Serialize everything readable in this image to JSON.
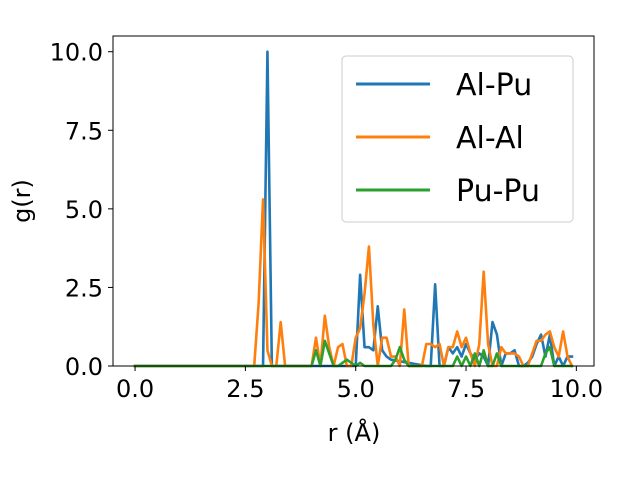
{
  "chart_data": {
    "type": "line",
    "title": "",
    "xlabel": "r (Å)",
    "ylabel": "g(r)",
    "xlim": [
      -0.5,
      10.4
    ],
    "ylim": [
      0.0,
      10.5
    ],
    "xticks": [
      0.0,
      2.5,
      5.0,
      7.5,
      10.0
    ],
    "xtick_labels": [
      "0.0",
      "2.5",
      "5.0",
      "7.5",
      "10.0"
    ],
    "yticks": [
      0.0,
      2.5,
      5.0,
      7.5,
      10.0
    ],
    "ytick_labels": [
      "0.0",
      "2.5",
      "5.0",
      "7.5",
      "10.0"
    ],
    "grid": false,
    "legend": "top-right",
    "series": [
      {
        "name": "Al-Pu",
        "color": "#1f77b4",
        "x": [
          0.0,
          2.7,
          2.9,
          3.0,
          3.1,
          3.3,
          4.9,
          5.0,
          5.1,
          5.2,
          5.3,
          5.4,
          5.5,
          5.6,
          5.7,
          5.8,
          6.6,
          6.7,
          6.8,
          6.9,
          7.0,
          7.1,
          7.2,
          7.3,
          7.4,
          7.5,
          7.6,
          7.7,
          7.8,
          7.9,
          8.0,
          8.1,
          8.2,
          8.3,
          8.4,
          8.5,
          8.6,
          8.7,
          8.8,
          8.9,
          9.0,
          9.1,
          9.2,
          9.3,
          9.4,
          9.5,
          9.6,
          9.7,
          9.8,
          9.9
        ],
        "y": [
          0.0,
          0.0,
          0.0,
          10.0,
          0.0,
          0.0,
          0.0,
          0.0,
          2.9,
          0.6,
          0.6,
          0.5,
          1.9,
          0.5,
          0.3,
          0.2,
          0.0,
          0.0,
          2.6,
          0.0,
          0.0,
          0.6,
          0.4,
          0.6,
          0.3,
          0.7,
          0.4,
          0.2,
          0.4,
          0.3,
          0.0,
          1.4,
          1.0,
          0.0,
          0.4,
          0.4,
          0.5,
          0.0,
          0.0,
          0.1,
          0.3,
          0.7,
          1.0,
          0.3,
          1.0,
          0.0,
          0.3,
          0.0,
          0.3,
          0.3
        ]
      },
      {
        "name": "Al-Al",
        "color": "#ff7f0e",
        "x": [
          0.0,
          2.7,
          2.8,
          2.9,
          3.0,
          3.1,
          3.2,
          3.3,
          3.4,
          3.9,
          4.0,
          4.1,
          4.2,
          4.3,
          4.4,
          4.5,
          4.6,
          4.7,
          4.8,
          4.9,
          5.0,
          5.1,
          5.2,
          5.3,
          5.4,
          5.5,
          5.6,
          5.7,
          5.8,
          5.9,
          6.0,
          6.1,
          6.2,
          6.3,
          6.4,
          6.5,
          6.6,
          6.7,
          6.8,
          6.9,
          7.0,
          7.1,
          7.2,
          7.3,
          7.4,
          7.5,
          7.6,
          7.7,
          7.8,
          7.9,
          8.0,
          8.1,
          8.2,
          8.3,
          8.4,
          8.5,
          8.6,
          8.7,
          8.8,
          8.9,
          9.0,
          9.1,
          9.2,
          9.3,
          9.4,
          9.5,
          9.6,
          9.7,
          9.8,
          9.9
        ],
        "y": [
          0.0,
          0.0,
          2.0,
          5.3,
          0.5,
          0.0,
          0.0,
          1.4,
          0.0,
          0.0,
          0.0,
          0.9,
          0.0,
          1.6,
          0.6,
          0.0,
          0.6,
          0.7,
          0.0,
          0.0,
          0.9,
          1.2,
          2.3,
          3.8,
          1.3,
          0.0,
          0.9,
          0.9,
          0.3,
          0.3,
          0.0,
          1.8,
          0.0,
          0.0,
          0.0,
          0.0,
          0.7,
          0.7,
          0.6,
          0.7,
          0.0,
          0.6,
          0.6,
          1.1,
          0.6,
          0.9,
          0.4,
          0.0,
          0.7,
          3.0,
          0.7,
          0.0,
          0.0,
          0.6,
          0.4,
          0.4,
          0.4,
          0.3,
          0.0,
          0.0,
          0.4,
          0.8,
          0.8,
          1.0,
          1.1,
          0.6,
          0.3,
          1.1,
          0.3,
          0.0
        ]
      },
      {
        "name": "Pu-Pu",
        "color": "#2ca02c",
        "x": [
          0.0,
          4.0,
          4.1,
          4.2,
          4.3,
          4.4,
          4.5,
          4.6,
          4.8,
          5.0,
          5.1,
          5.2,
          5.8,
          5.9,
          6.0,
          6.1,
          6.2,
          7.2,
          7.3,
          7.4,
          7.5,
          7.6,
          7.7,
          7.8,
          7.9,
          8.0,
          8.1,
          8.2,
          8.3,
          9.2,
          9.3,
          9.4,
          9.5,
          9.9
        ],
        "y": [
          0.0,
          0.0,
          0.5,
          0.0,
          0.8,
          0.4,
          0.0,
          0.0,
          0.2,
          0.0,
          0.1,
          0.0,
          0.0,
          0.2,
          0.6,
          0.2,
          0.0,
          0.0,
          0.3,
          0.0,
          0.3,
          0.0,
          0.4,
          0.0,
          0.5,
          0.0,
          0.0,
          0.4,
          0.0,
          0.0,
          0.4,
          0.6,
          0.0,
          0.0
        ]
      }
    ]
  }
}
